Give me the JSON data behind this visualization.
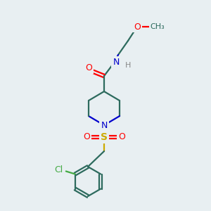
{
  "bg_color": "#e8eff2",
  "bond_color": "#2d6b5e",
  "atom_colors": {
    "O": "#ff0000",
    "N": "#0000cc",
    "S": "#ccaa00",
    "Cl": "#44aa44",
    "H": "#888888",
    "C": "#2d6b5e"
  },
  "bond_width": 1.6,
  "fig_size": [
    3.0,
    3.0
  ],
  "dpi": 100
}
